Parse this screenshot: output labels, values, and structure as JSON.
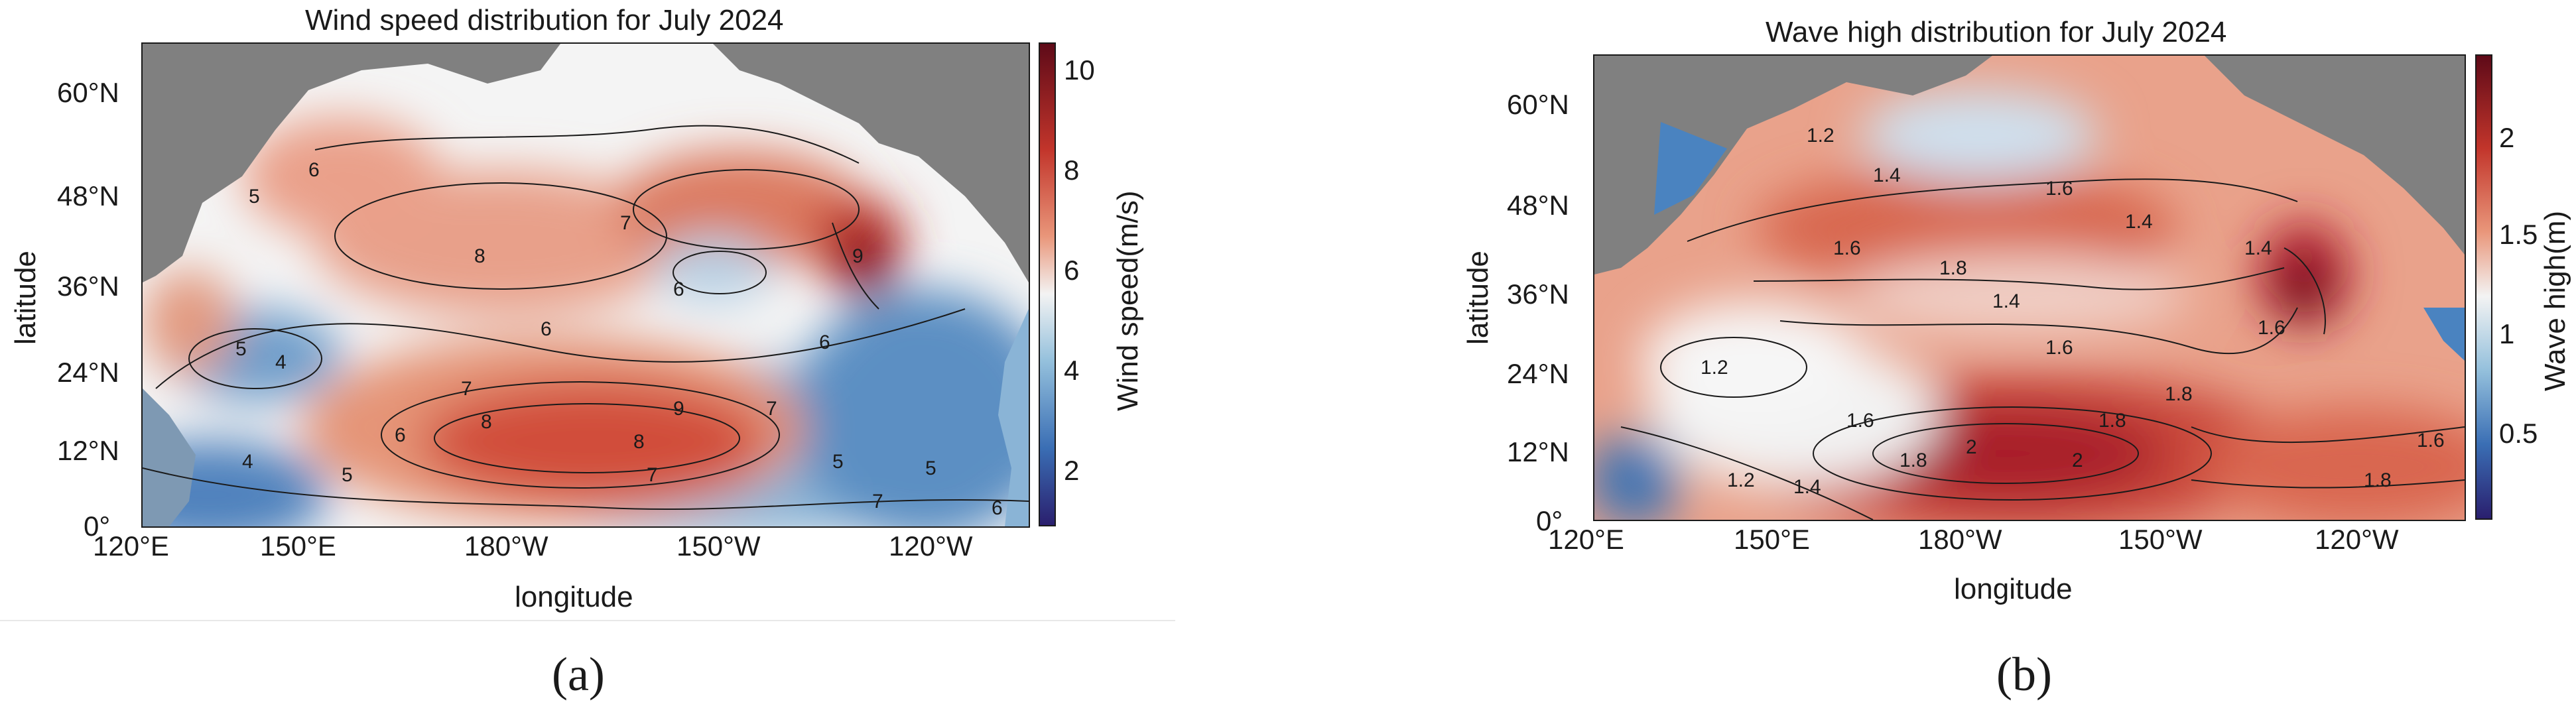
{
  "panels": [
    {
      "id": "a",
      "title": "Wind speed distribution for July 2024",
      "xlabel": "longitude",
      "ylabel": "latitude",
      "x_ticks": [
        "120°E",
        "150°E",
        "180°W",
        "150°W",
        "120°W"
      ],
      "y_ticks": [
        "60°N",
        "48°N",
        "36°N",
        "24°N",
        "12°N",
        "0°"
      ],
      "colorbar": {
        "label": "Wind speed(m/s)",
        "ticks": [
          "10",
          "8",
          "6",
          "4",
          "2"
        ],
        "range": [
          1,
          10.5
        ],
        "colors": [
          "#2a1f6e",
          "#3a6eb4",
          "#94c0dc",
          "#f3f3f3",
          "#e9967a",
          "#c2352b",
          "#5e0a18"
        ]
      },
      "contour_labels": [
        "5",
        "6",
        "7",
        "8",
        "9",
        "4",
        "5",
        "6",
        "7",
        "8",
        "7",
        "6",
        "5",
        "6",
        "8",
        "9",
        "7",
        "6",
        "5",
        "4",
        "5",
        "6",
        "7"
      ],
      "panel_label": "(a)"
    },
    {
      "id": "b",
      "title": "Wave high distribution for July 2024",
      "xlabel": "longitude",
      "ylabel": "latitude",
      "x_ticks": [
        "120°E",
        "150°E",
        "180°W",
        "150°W",
        "120°W"
      ],
      "y_ticks": [
        "60°N",
        "48°N",
        "36°N",
        "24°N",
        "12°N",
        "0°"
      ],
      "colorbar": {
        "label": "Wave high(m)",
        "ticks": [
          "2",
          "1.5",
          "1",
          "0.5"
        ],
        "range": [
          0.1,
          2.4
        ],
        "colors": [
          "#2a1f6e",
          "#3a6eb4",
          "#94c0dc",
          "#f3f3f3",
          "#e9967a",
          "#c2352b",
          "#5e0a18"
        ]
      },
      "contour_labels": [
        "1.2",
        "1.4",
        "1.6",
        "1.4",
        "1.6",
        "1.8",
        "2",
        "1.8",
        "1.6",
        "1.4",
        "1.2",
        "1.6",
        "1.8",
        "2",
        "1.8",
        "1.6",
        "1.4",
        "1.6",
        "1.8",
        "1.2",
        "1.4"
      ],
      "panel_label": "(b)"
    }
  ],
  "colors": {
    "land": "#808080",
    "contour": "#1a1a1a"
  }
}
